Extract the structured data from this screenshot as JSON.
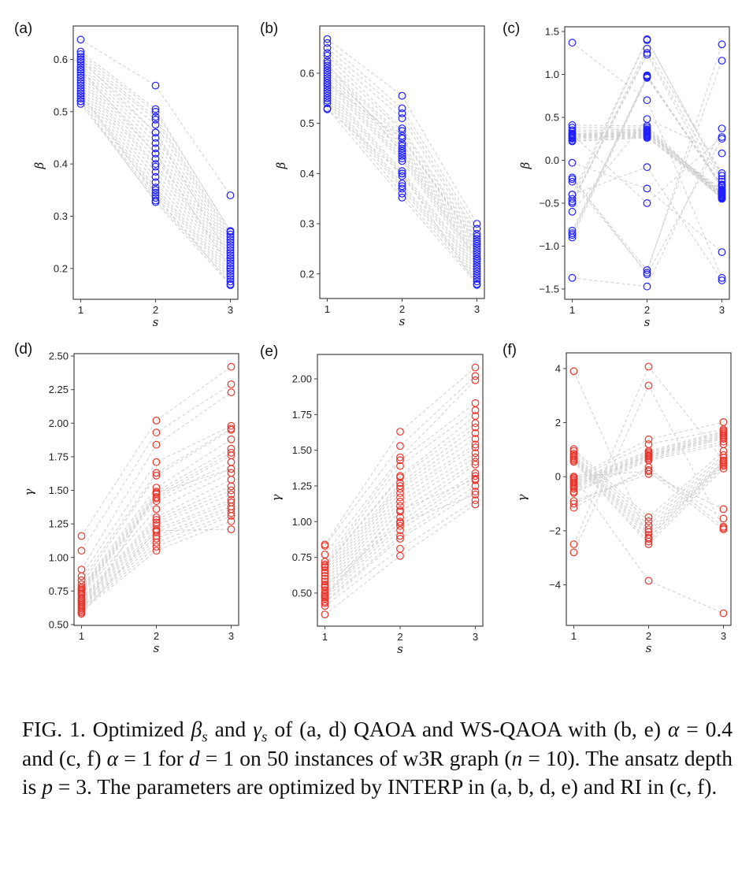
{
  "chart_data": [
    {
      "type": "line",
      "id": "a",
      "panel_label": "(a)",
      "xlabel": "s",
      "ylabel": "β",
      "xlim": [
        0.9,
        3.1
      ],
      "ylim": [
        0.141,
        0.664
      ],
      "xticks": [
        1,
        2,
        3
      ],
      "xtick_labels": [
        "1",
        "2",
        "3"
      ],
      "yticks": [
        0.2,
        0.3,
        0.4,
        0.5,
        0.6
      ],
      "ytick_labels": [
        "0.2",
        "0.3",
        "0.4",
        "0.5",
        "0.6"
      ],
      "marker_color": "#1f1fff",
      "line_color": "#cfcfcf",
      "line_style": "dashed",
      "x": [
        1,
        2,
        3
      ],
      "instances": [
        [
          0.638,
          0.55,
          0.34
        ],
        [
          0.615,
          0.505,
          0.27
        ],
        [
          0.61,
          0.5,
          0.272
        ],
        [
          0.605,
          0.49,
          0.265
        ],
        [
          0.6,
          0.485,
          0.26
        ],
        [
          0.595,
          0.475,
          0.255
        ],
        [
          0.59,
          0.46,
          0.25
        ],
        [
          0.585,
          0.45,
          0.245
        ],
        [
          0.58,
          0.44,
          0.24
        ],
        [
          0.575,
          0.43,
          0.235
        ],
        [
          0.57,
          0.42,
          0.23
        ],
        [
          0.565,
          0.41,
          0.225
        ],
        [
          0.56,
          0.4,
          0.22
        ],
        [
          0.555,
          0.395,
          0.215
        ],
        [
          0.55,
          0.385,
          0.21
        ],
        [
          0.545,
          0.375,
          0.205
        ],
        [
          0.54,
          0.365,
          0.2
        ],
        [
          0.535,
          0.355,
          0.195
        ],
        [
          0.53,
          0.35,
          0.19
        ],
        [
          0.525,
          0.345,
          0.185
        ],
        [
          0.52,
          0.335,
          0.18
        ],
        [
          0.515,
          0.33,
          0.175
        ],
        [
          0.52,
          0.327,
          0.168
        ],
        [
          0.535,
          0.34,
          0.17
        ],
        [
          0.6,
          0.46,
          0.22
        ],
        [
          0.58,
          0.42,
          0.2
        ]
      ]
    },
    {
      "type": "line",
      "id": "b",
      "panel_label": "(b)",
      "xlabel": "s",
      "ylabel": "β",
      "xlim": [
        0.9,
        3.1
      ],
      "ylim": [
        0.151,
        0.694
      ],
      "xticks": [
        1,
        2,
        3
      ],
      "xtick_labels": [
        "1",
        "2",
        "3"
      ],
      "yticks": [
        0.2,
        0.3,
        0.4,
        0.5,
        0.6
      ],
      "ytick_labels": [
        "0.2",
        "0.3",
        "0.4",
        "0.5",
        "0.6"
      ],
      "marker_color": "#1f1fff",
      "line_color": "#cfcfcf",
      "line_style": "dashed",
      "x": [
        1,
        2,
        3
      ],
      "instances": [
        [
          0.668,
          0.555,
          0.3
        ],
        [
          0.66,
          0.53,
          0.29
        ],
        [
          0.65,
          0.52,
          0.28
        ],
        [
          0.64,
          0.51,
          0.275
        ],
        [
          0.635,
          0.49,
          0.27
        ],
        [
          0.625,
          0.485,
          0.265
        ],
        [
          0.615,
          0.475,
          0.26
        ],
        [
          0.61,
          0.47,
          0.255
        ],
        [
          0.6,
          0.46,
          0.25
        ],
        [
          0.605,
          0.455,
          0.245
        ],
        [
          0.595,
          0.45,
          0.24
        ],
        [
          0.59,
          0.445,
          0.235
        ],
        [
          0.585,
          0.435,
          0.23
        ],
        [
          0.58,
          0.43,
          0.225
        ],
        [
          0.575,
          0.425,
          0.22
        ],
        [
          0.57,
          0.405,
          0.215
        ],
        [
          0.565,
          0.4,
          0.21
        ],
        [
          0.56,
          0.395,
          0.205
        ],
        [
          0.555,
          0.38,
          0.2
        ],
        [
          0.55,
          0.375,
          0.195
        ],
        [
          0.545,
          0.37,
          0.19
        ],
        [
          0.54,
          0.36,
          0.185
        ],
        [
          0.53,
          0.352,
          0.18
        ],
        [
          0.528,
          0.4,
          0.178
        ],
        [
          0.62,
          0.44,
          0.23
        ],
        [
          0.58,
          0.47,
          0.26
        ]
      ]
    },
    {
      "type": "line",
      "id": "c",
      "panel_label": "(c)",
      "xlabel": "s",
      "ylabel": "β",
      "xlim": [
        0.9,
        3.1
      ],
      "ylim": [
        -1.62,
        1.555
      ],
      "xticks": [
        1,
        2,
        3
      ],
      "xtick_labels": [
        "1",
        "2",
        "3"
      ],
      "yticks": [
        -1.5,
        -1.0,
        -0.5,
        0.0,
        0.5,
        1.0,
        1.5
      ],
      "ytick_labels": [
        "−1.5",
        "−1.0",
        "−0.5",
        "0.0",
        "0.5",
        "1.0",
        "1.5"
      ],
      "marker_color": "#1f1fff",
      "line_color": "#cfcfcf",
      "line_style": "dashed",
      "x": [
        1,
        2,
        3
      ],
      "instances": [
        [
          0.41,
          0.4,
          -0.42
        ],
        [
          0.38,
          0.38,
          -0.43
        ],
        [
          0.35,
          0.36,
          -0.44
        ],
        [
          0.33,
          0.35,
          -0.4
        ],
        [
          0.31,
          0.34,
          -0.38
        ],
        [
          0.3,
          0.33,
          -0.45
        ],
        [
          0.29,
          0.32,
          -0.36
        ],
        [
          0.28,
          0.31,
          -0.41
        ],
        [
          0.27,
          0.3,
          -0.34
        ],
        [
          0.26,
          0.29,
          -0.43
        ],
        [
          0.25,
          0.28,
          -0.39
        ],
        [
          0.23,
          0.27,
          -0.44
        ],
        [
          0.22,
          0.26,
          -0.37
        ],
        [
          -0.82,
          0.97,
          -0.3
        ],
        [
          -0.85,
          0.99,
          -0.29
        ],
        [
          -0.87,
          0.98,
          -0.32
        ],
        [
          -0.9,
          0.96,
          -0.28
        ],
        [
          -0.4,
          1.41,
          -0.22
        ],
        [
          -0.45,
          1.4,
          -0.18
        ],
        [
          -0.5,
          1.3,
          -0.15
        ],
        [
          -0.48,
          1.25,
          -0.25
        ],
        [
          -0.5,
          1.23,
          -0.35
        ],
        [
          -0.22,
          -1.28,
          1.16
        ],
        [
          -0.25,
          -1.31,
          1.35
        ],
        [
          -0.2,
          -1.33,
          0.25
        ],
        [
          1.37,
          0.7,
          -1.37
        ],
        [
          -1.37,
          -1.47,
          0.37
        ],
        [
          -0.03,
          -0.33,
          -1.07
        ],
        [
          -0.4,
          -0.08,
          -1.4
        ],
        [
          -0.6,
          0.48,
          0.08
        ],
        [
          0.3,
          -0.5,
          0.27
        ]
      ]
    },
    {
      "type": "line",
      "id": "d",
      "panel_label": "(d)",
      "xlabel": "s",
      "ylabel": "γ",
      "xlim": [
        0.9,
        3.1
      ],
      "ylim": [
        0.494,
        2.518
      ],
      "xticks": [
        1,
        2,
        3
      ],
      "xtick_labels": [
        "1",
        "2",
        "3"
      ],
      "yticks": [
        0.5,
        0.75,
        1.0,
        1.25,
        1.5,
        1.75,
        2.0,
        2.25,
        2.5
      ],
      "ytick_labels": [
        "0.50",
        "0.75",
        "1.00",
        "1.25",
        "1.50",
        "1.75",
        "2.00",
        "2.25",
        "2.50"
      ],
      "marker_color": "#e8352c",
      "line_color": "#cfcfcf",
      "line_style": "dashed",
      "x": [
        1,
        2,
        3
      ],
      "instances": [
        [
          1.16,
          2.02,
          2.42
        ],
        [
          1.05,
          1.93,
          2.29
        ],
        [
          0.91,
          1.84,
          2.23
        ],
        [
          0.86,
          1.71,
          1.98
        ],
        [
          0.83,
          1.63,
          1.96
        ],
        [
          0.8,
          1.61,
          1.95
        ],
        [
          0.78,
          1.52,
          1.88
        ],
        [
          0.77,
          1.49,
          1.81
        ],
        [
          0.76,
          1.47,
          1.78
        ],
        [
          0.75,
          1.45,
          1.76
        ],
        [
          0.74,
          1.44,
          1.71
        ],
        [
          0.73,
          1.42,
          1.66
        ],
        [
          0.72,
          1.36,
          1.63
        ],
        [
          0.7,
          1.3,
          1.58
        ],
        [
          0.69,
          1.28,
          1.53
        ],
        [
          0.68,
          1.26,
          1.5
        ],
        [
          0.67,
          1.24,
          1.47
        ],
        [
          0.66,
          1.21,
          1.43
        ],
        [
          0.65,
          1.19,
          1.41
        ],
        [
          0.64,
          1.16,
          1.38
        ],
        [
          0.63,
          1.14,
          1.36
        ],
        [
          0.62,
          1.11,
          1.33
        ],
        [
          0.61,
          1.08,
          1.31
        ],
        [
          0.6,
          1.05,
          1.27
        ],
        [
          0.58,
          1.2,
          1.21
        ],
        [
          0.59,
          1.48,
          1.66
        ]
      ]
    },
    {
      "type": "line",
      "id": "e",
      "panel_label": "(e)",
      "xlabel": "s",
      "ylabel": "γ",
      "xlim": [
        0.9,
        3.1
      ],
      "ylim": [
        0.268,
        2.171
      ],
      "xticks": [
        1,
        2,
        3
      ],
      "xtick_labels": [
        "1",
        "2",
        "3"
      ],
      "yticks": [
        0.5,
        0.75,
        1.0,
        1.25,
        1.5,
        1.75,
        2.0
      ],
      "ytick_labels": [
        "0.50",
        "0.75",
        "1.00",
        "1.25",
        "1.50",
        "1.75",
        "2.00"
      ],
      "marker_color": "#e8352c",
      "line_color": "#cfcfcf",
      "line_style": "dashed",
      "x": [
        1,
        2,
        3
      ],
      "instances": [
        [
          0.84,
          1.63,
          2.08
        ],
        [
          0.83,
          1.53,
          2.02
        ],
        [
          0.77,
          1.45,
          1.99
        ],
        [
          0.72,
          1.43,
          1.83
        ],
        [
          0.7,
          1.39,
          1.78
        ],
        [
          0.69,
          1.32,
          1.74
        ],
        [
          0.68,
          1.31,
          1.69
        ],
        [
          0.66,
          1.27,
          1.66
        ],
        [
          0.64,
          1.25,
          1.62
        ],
        [
          0.62,
          1.23,
          1.58
        ],
        [
          0.6,
          1.2,
          1.54
        ],
        [
          0.58,
          1.17,
          1.52
        ],
        [
          0.56,
          1.14,
          1.48
        ],
        [
          0.54,
          1.11,
          1.45
        ],
        [
          0.52,
          1.07,
          1.42
        ],
        [
          0.5,
          1.03,
          1.4
        ],
        [
          0.49,
          1.0,
          1.34
        ],
        [
          0.48,
          0.97,
          1.32
        ],
        [
          0.46,
          0.94,
          1.29
        ],
        [
          0.44,
          0.9,
          1.25
        ],
        [
          0.43,
          0.88,
          1.21
        ],
        [
          0.41,
          0.81,
          1.15
        ],
        [
          0.35,
          0.76,
          1.12
        ],
        [
          0.47,
          1.08,
          1.3
        ],
        [
          0.55,
          0.99,
          1.19
        ]
      ]
    },
    {
      "type": "line",
      "id": "f",
      "panel_label": "(f)",
      "xlabel": "s",
      "ylabel": "γ",
      "xlim": [
        0.9,
        3.1
      ],
      "ylim": [
        -5.5,
        4.58
      ],
      "xticks": [
        1,
        2,
        3
      ],
      "xtick_labels": [
        "1",
        "2",
        "3"
      ],
      "yticks": [
        -4,
        -2,
        0,
        2,
        4
      ],
      "ytick_labels": [
        "−4",
        "−2",
        "0",
        "2",
        "4"
      ],
      "marker_color": "#e8352c",
      "line_color": "#cfcfcf",
      "line_style": "dashed",
      "x": [
        1,
        2,
        3
      ],
      "instances": [
        [
          -0.05,
          1.38,
          2.02
        ],
        [
          -0.1,
          1.2,
          1.75
        ],
        [
          -0.15,
          0.95,
          1.7
        ],
        [
          -0.2,
          0.9,
          1.65
        ],
        [
          -0.25,
          0.85,
          1.6
        ],
        [
          -0.3,
          0.8,
          1.55
        ],
        [
          -0.35,
          0.78,
          1.5
        ],
        [
          -0.4,
          0.75,
          1.45
        ],
        [
          -0.45,
          0.7,
          1.4
        ],
        [
          -0.55,
          0.65,
          1.3
        ],
        [
          -0.6,
          0.6,
          1.2
        ],
        [
          1.02,
          -1.5,
          0.95
        ],
        [
          0.95,
          -1.65,
          0.8
        ],
        [
          0.85,
          -1.8,
          0.7
        ],
        [
          0.8,
          -1.95,
          0.6
        ],
        [
          0.75,
          -2.05,
          0.55
        ],
        [
          0.7,
          -2.15,
          0.5
        ],
        [
          0.65,
          -2.25,
          0.45
        ],
        [
          0.6,
          -2.4,
          0.4
        ],
        [
          0.55,
          -2.5,
          0.3
        ],
        [
          -0.9,
          0.1,
          -1.2
        ],
        [
          -1.0,
          0.25,
          -1.55
        ],
        [
          -1.15,
          0.35,
          -1.85
        ],
        [
          0.0,
          0.2,
          -1.95
        ],
        [
          3.9,
          -2.3,
          0.55
        ],
        [
          -2.5,
          4.07,
          0.6
        ],
        [
          -2.8,
          3.37,
          -1.9
        ],
        [
          0.0,
          -3.85,
          -5.05
        ]
      ]
    }
  ],
  "caption": {
    "segments": [
      {
        "t": "FIG. 1. Optimized "
      },
      {
        "t": "β",
        "i": true
      },
      {
        "t": "s",
        "i": true,
        "sub": true
      },
      {
        "t": " and "
      },
      {
        "t": "γ",
        "i": true
      },
      {
        "t": "s",
        "i": true,
        "sub": true
      },
      {
        "t": " of (a, d) QAOA and WS-QAOA with (b, e) "
      },
      {
        "t": "α",
        "i": true
      },
      {
        "t": " = 0.4 and (c, f) "
      },
      {
        "t": "α",
        "i": true
      },
      {
        "t": " = 1 for "
      },
      {
        "t": "d",
        "i": true
      },
      {
        "t": " = 1 on 50 instances of w3R graph ("
      },
      {
        "t": "n",
        "i": true
      },
      {
        "t": " = 10). The ansatz depth is "
      },
      {
        "t": "p",
        "i": true
      },
      {
        "t": " = 3. The parameters are optimized by INTERP in (a, b, d, e) and RI in (c, f)."
      }
    ]
  }
}
